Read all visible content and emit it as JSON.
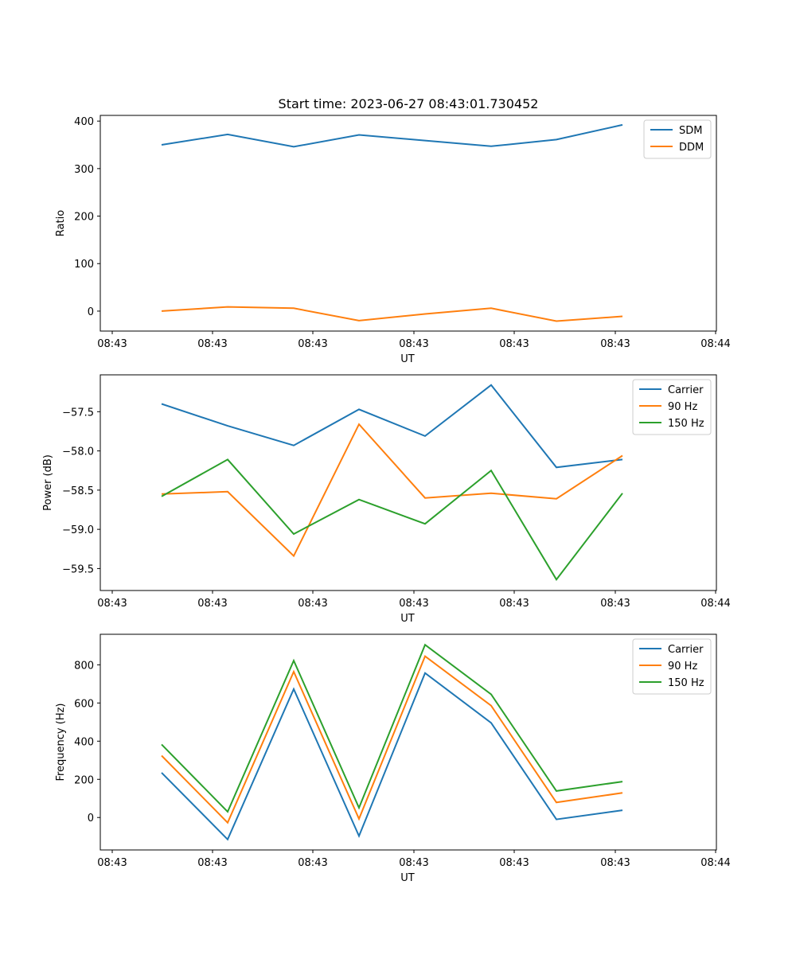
{
  "figure": {
    "title": "Start time: 2023-06-27 08:43:01.730452"
  },
  "chart_data": [
    {
      "type": "line",
      "xlabel": "UT",
      "ylabel": "Ratio",
      "xticks": [
        "08:43",
        "08:43",
        "08:43",
        "08:43",
        "08:43",
        "08:43",
        "08:44"
      ],
      "yticks": [
        "0",
        "100",
        "200",
        "300",
        "400"
      ],
      "ylim": [
        -42,
        412
      ],
      "grid": false,
      "legend_position": "top-right",
      "x": [
        1,
        2,
        3,
        4,
        5,
        6,
        7,
        8
      ],
      "series": [
        {
          "name": "SDM",
          "color": "#1f77b4",
          "values": [
            350,
            372,
            346,
            371,
            359,
            347,
            361,
            392
          ]
        },
        {
          "name": "DDM",
          "color": "#ff7f0e",
          "values": [
            0,
            9,
            6,
            -20,
            -6,
            6,
            -21,
            -11
          ]
        }
      ]
    },
    {
      "type": "line",
      "xlabel": "UT",
      "ylabel": "Power (dB)",
      "xticks": [
        "08:43",
        "08:43",
        "08:43",
        "08:43",
        "08:43",
        "08:43",
        "08:44"
      ],
      "yticks": [
        "−59.5",
        "−59.0",
        "−58.5",
        "−58.0",
        "−57.5"
      ],
      "ylim": [
        -59.78,
        -57.03
      ],
      "grid": false,
      "legend_position": "top-right",
      "x": [
        1,
        2,
        3,
        4,
        5,
        6,
        7,
        8
      ],
      "series": [
        {
          "name": "Carrier",
          "color": "#1f77b4",
          "values": [
            -57.4,
            -57.68,
            -57.93,
            -57.47,
            -57.81,
            -57.16,
            -58.21,
            -58.11
          ]
        },
        {
          "name": "90 Hz",
          "color": "#ff7f0e",
          "values": [
            -58.55,
            -58.52,
            -59.34,
            -57.66,
            -58.6,
            -58.54,
            -58.61,
            -58.06
          ]
        },
        {
          "name": "150 Hz",
          "color": "#2ca02c",
          "values": [
            -58.58,
            -58.11,
            -59.06,
            -58.62,
            -58.93,
            -58.25,
            -59.64,
            -58.54
          ]
        }
      ]
    },
    {
      "type": "line",
      "xlabel": "UT",
      "ylabel": "Frequency (Hz)",
      "xticks": [
        "08:43",
        "08:43",
        "08:43",
        "08:43",
        "08:43",
        "08:43",
        "08:44"
      ],
      "yticks": [
        "0",
        "200",
        "400",
        "600",
        "800"
      ],
      "ylim": [
        -170,
        960
      ],
      "grid": false,
      "legend_position": "top-right",
      "x": [
        1,
        2,
        3,
        4,
        5,
        6,
        7,
        8
      ],
      "series": [
        {
          "name": "Carrier",
          "color": "#1f77b4",
          "values": [
            235,
            -115,
            673,
            -97,
            757,
            496,
            -10,
            38
          ]
        },
        {
          "name": "90 Hz",
          "color": "#ff7f0e",
          "values": [
            324,
            -27,
            764,
            -7,
            845,
            586,
            79,
            129
          ]
        },
        {
          "name": "150 Hz",
          "color": "#2ca02c",
          "values": [
            383,
            30,
            822,
            51,
            905,
            645,
            139,
            188
          ]
        }
      ]
    }
  ]
}
